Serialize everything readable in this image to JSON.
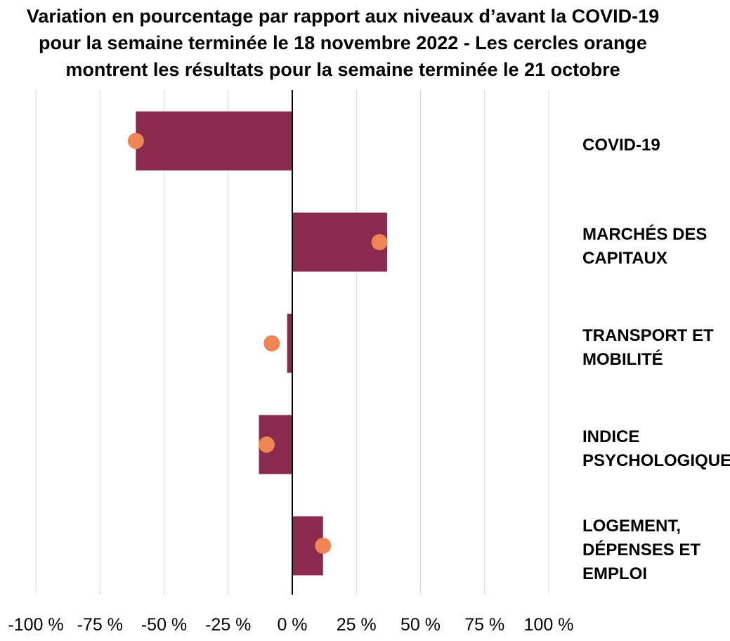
{
  "chart_data": {
    "type": "bar",
    "orientation": "horizontal",
    "title_lines": [
      "Variation en pourcentage par rapport aux niveaux d’avant la COVID-19",
      "pour la semaine terminée le 18 novembre 2022 - Les cercles orange",
      "montrent les résultats pour la semaine terminée le 21 octobre"
    ],
    "categories": [
      [
        "COVID-19"
      ],
      [
        "MARCHÉS DES",
        "CAPITAUX"
      ],
      [
        "TRANSPORT ET",
        "MOBILITÉ"
      ],
      [
        "INDICE",
        "PSYCHOLOGIQUE"
      ],
      [
        "LOGEMENT,",
        "DÉPENSES ET",
        "EMPLOI"
      ]
    ],
    "series": [
      {
        "name": "Semaine terminée le 18 novembre 2022",
        "type": "bar",
        "color": "#8B2A4F",
        "values": [
          -61,
          37,
          -2,
          -13,
          12
        ]
      },
      {
        "name": "Semaine terminée le 21 octobre",
        "type": "marker",
        "color": "#EE8552",
        "values": [
          -61,
          34,
          -8,
          -10,
          12
        ]
      }
    ],
    "xlim": [
      -100,
      100
    ],
    "xticks": [
      -100,
      -75,
      -50,
      -25,
      0,
      25,
      50,
      75,
      100
    ],
    "xtick_labels": [
      "-100 %",
      "-75 %",
      "-50 %",
      "-25 %",
      "0 %",
      "25 %",
      "50 %",
      "75 %",
      "100 %"
    ],
    "grid": true
  }
}
